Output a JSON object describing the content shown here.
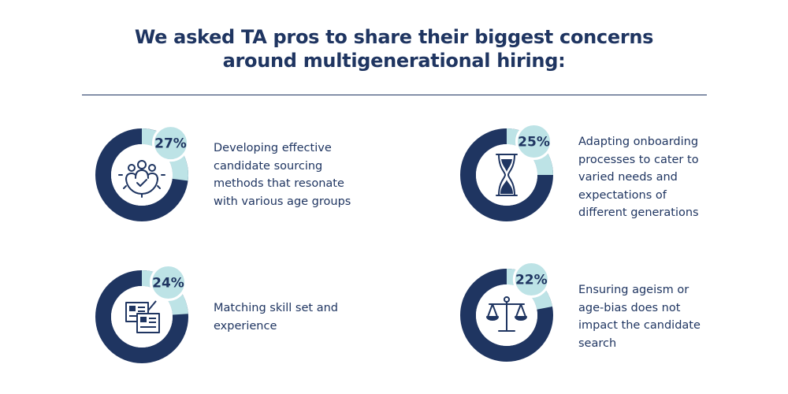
{
  "title": {
    "line1": "We asked TA pros to share their biggest concerns",
    "line2": "around multigenerational hiring:"
  },
  "colors": {
    "navy": "#1f3561",
    "light": "#bde3e6",
    "white": "#ffffff"
  },
  "chart_data": {
    "type": "pie",
    "unit": "%",
    "items": [
      {
        "value": 27,
        "label": "27%",
        "text": "Developing effective candidate sourcing methods that resonate with various age groups",
        "icon": "people-gear-icon"
      },
      {
        "value": 25,
        "label": "25%",
        "text": "Adapting onboarding processes to cater to varied needs and expectations of different generations",
        "icon": "hourglass-icon"
      },
      {
        "value": 24,
        "label": "24%",
        "text": "Matching skill set and experience",
        "icon": "resume-cards-icon"
      },
      {
        "value": 22,
        "label": "22%",
        "text": "Ensuring ageism or age-bias does not impact the candidate search",
        "icon": "scales-icon"
      }
    ]
  }
}
